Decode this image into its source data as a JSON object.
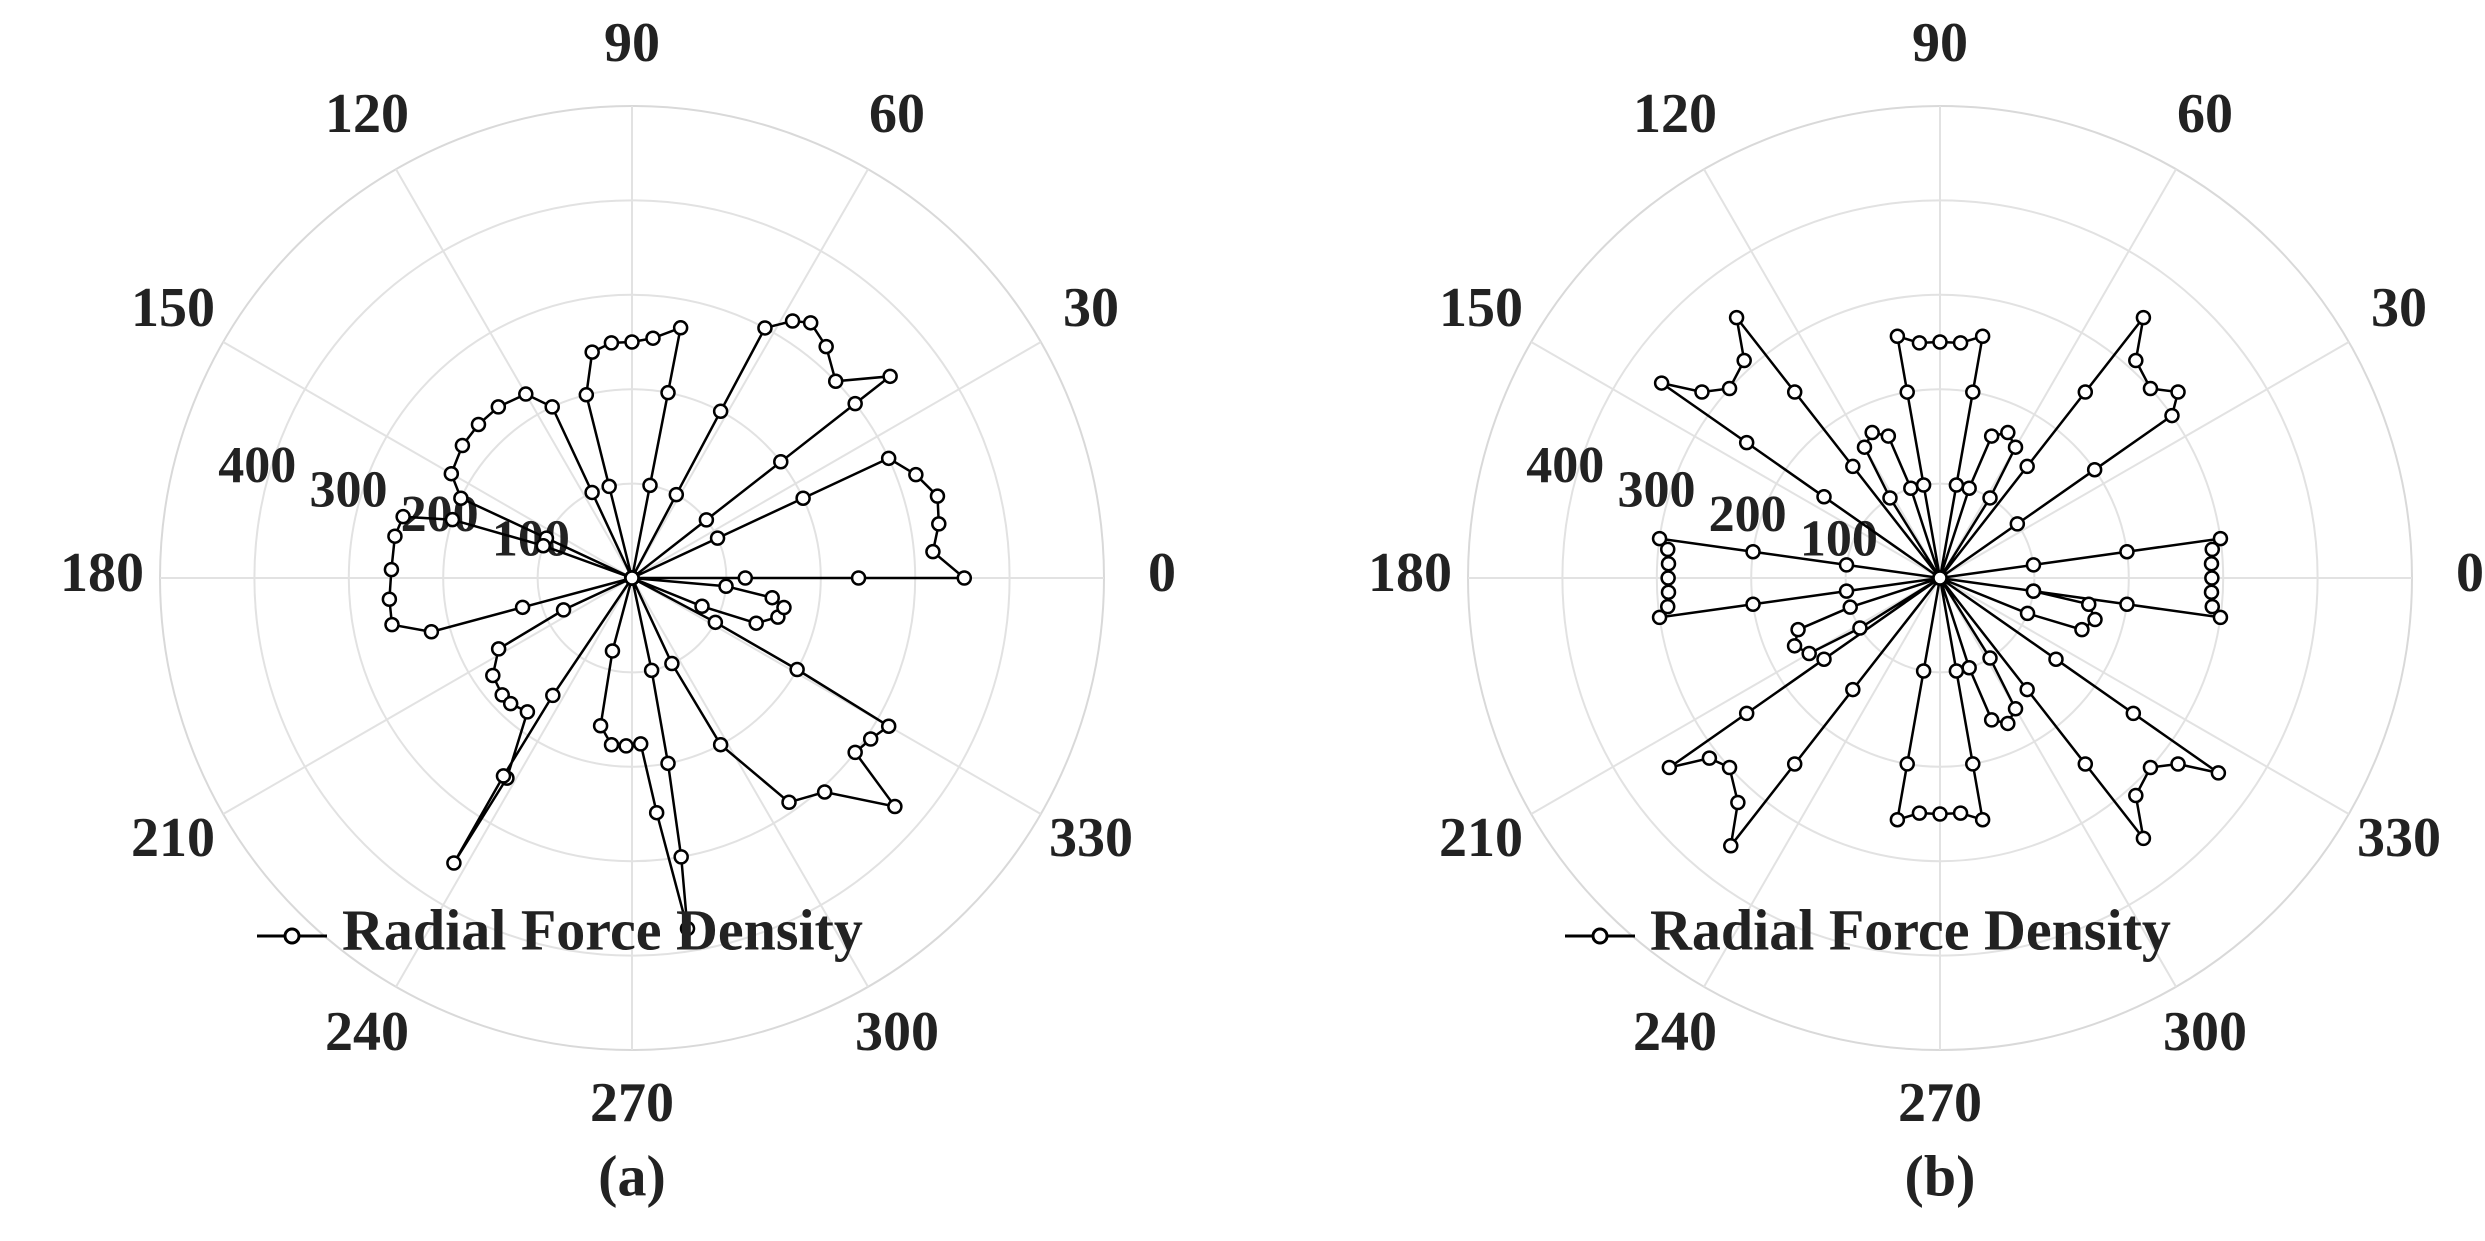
{
  "chart_data": [
    {
      "type": "polar",
      "caption": "(a)",
      "rlim": [
        0,
        500
      ],
      "rticks": [
        100,
        200,
        300,
        400
      ],
      "thetaticks": [
        0,
        30,
        60,
        90,
        120,
        150,
        180,
        210,
        240,
        270,
        300,
        330
      ],
      "grid": true,
      "legend": "bottom",
      "series": [
        {
          "name": "Radial Force Density",
          "color": "#000000",
          "theta": [
            0,
            0,
            0,
            0,
            5,
            10,
            15,
            20,
            25,
            25,
            25,
            25,
            38,
            38,
            38,
            38,
            44,
            50,
            55,
            58,
            62,
            62,
            62,
            62,
            79,
            79,
            79,
            85,
            90,
            95,
            100,
            104,
            104,
            104,
            115,
            115,
            120,
            128,
            135,
            142,
            150,
            155,
            155,
            155,
            160,
            162,
            165,
            170,
            178,
            185,
            191,
            195,
            195,
            195,
            205,
            208,
            215,
            222,
            226,
            232,
            238,
            238,
            237,
            236,
            236,
            255,
            258,
            263,
            268,
            273,
            276,
            279,
            280,
            281,
            282,
            282,
            295,
            298,
            305,
            312,
            319,
            322,
            326,
            330,
            331,
            332,
            332,
            338,
            340,
            345,
            349,
            352,
            355,
            358
          ],
          "r": [
            0,
            120,
            240,
            352,
            320,
            330,
            335,
            320,
            300,
            200,
            100,
            0,
            100,
            200,
            300,
            347,
            300,
            320,
            330,
            321,
            300,
            200,
            100,
            0,
            100,
            200,
            270,
            255,
            250,
            250,
            243,
            200,
            100,
            0,
            100,
            200,
            225,
            230,
            230,
            228,
            221,
            200,
            100,
            0,
            100,
            200,
            251,
            255,
            255,
            258,
            259,
            220,
            120,
            0,
            80,
            160,
            180,
            185,
            185,
            180,
            250,
            356,
            250,
            150,
            0,
            80,
            160,
            178,
            178,
            176,
            250,
            376,
            300,
            200,
            100,
            0,
            100,
            200,
            290,
            305,
            369,
            300,
            305,
            314,
            200,
            100,
            0,
            80,
            140,
            160,
            164,
            150,
            100,
            0
          ]
        }
      ]
    },
    {
      "type": "polar",
      "caption": "(b)",
      "rlim": [
        0,
        500
      ],
      "rticks": [
        100,
        200,
        300,
        400
      ],
      "thetaticks": [
        0,
        30,
        60,
        90,
        120,
        150,
        180,
        210,
        240,
        270,
        300,
        330
      ],
      "grid": true,
      "legend": "bottom",
      "series": [
        {
          "name": "Radial Force Density",
          "color": "#000000",
          "theta": [
            0,
            352,
            352,
            352,
            354,
            357,
            0,
            3,
            6,
            8,
            8,
            8,
            8,
            35,
            35,
            35,
            38,
            42,
            48,
            52,
            52,
            52,
            52,
            58,
            60,
            65,
            70,
            72,
            72,
            80,
            80,
            80,
            85,
            90,
            95,
            100,
            100,
            100,
            100,
            108,
            110,
            115,
            120,
            122,
            122,
            128,
            128,
            128,
            132,
            138,
            142,
            145,
            145,
            145,
            145,
            172,
            172,
            172,
            174,
            177,
            180,
            183,
            186,
            188,
            188,
            188,
            188,
            198,
            200,
            205,
            210,
            212,
            212,
            215,
            215,
            215,
            218,
            222,
            228,
            232,
            232,
            232,
            232,
            260,
            260,
            260,
            265,
            270,
            275,
            280,
            280,
            280,
            280,
            288,
            290,
            295,
            300,
            302,
            302,
            308,
            308,
            308,
            312,
            318,
            322,
            325,
            325,
            325,
            325,
            338,
            340,
            345,
            350,
            352,
            352
          ],
          "r": [
            0,
            100,
            200,
            300,
            290,
            288,
            288,
            288,
            290,
            300,
            200,
            100,
            0,
            100,
            200,
            300,
            320,
            300,
            310,
            350,
            250,
            150,
            0,
            100,
            160,
            170,
            160,
            100,
            0,
            100,
            200,
            260,
            250,
            250,
            250,
            260,
            200,
            100,
            0,
            100,
            160,
            170,
            160,
            100,
            0,
            150,
            250,
            350,
            310,
            300,
            320,
            360,
            250,
            150,
            0,
            100,
            200,
            300,
            290,
            288,
            288,
            288,
            290,
            300,
            200,
            100,
            0,
            100,
            160,
            170,
            160,
            100,
            0,
            150,
            250,
            350,
            310,
            300,
            320,
            360,
            250,
            150,
            0,
            100,
            200,
            260,
            250,
            250,
            250,
            260,
            200,
            100,
            0,
            100,
            160,
            170,
            160,
            100,
            0,
            150,
            250,
            350,
            310,
            300,
            320,
            360,
            250,
            150,
            0,
            100,
            160,
            170,
            160,
            100,
            0
          ]
        }
      ]
    }
  ]
}
